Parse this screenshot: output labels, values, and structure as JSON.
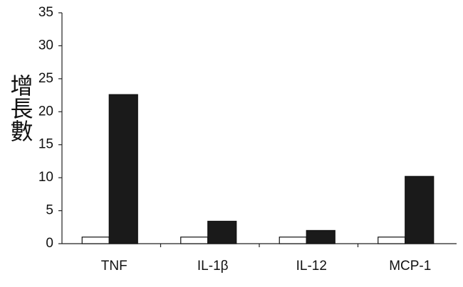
{
  "chart_data": {
    "type": "bar",
    "y_label": "增長數",
    "categories": [
      "TNF",
      "IL-1β",
      "IL-12",
      "MCP-1"
    ],
    "series": [
      {
        "color": "#ffffff",
        "values": [
          1.0,
          1.0,
          1.0,
          1.0
        ]
      },
      {
        "color": "#1a1a1a",
        "values": [
          22.6,
          3.4,
          2.0,
          10.2
        ]
      }
    ],
    "ylim": [
      0,
      35
    ],
    "yticks": [
      0,
      5,
      10,
      15,
      20,
      25,
      30,
      35
    ],
    "grid": false
  }
}
